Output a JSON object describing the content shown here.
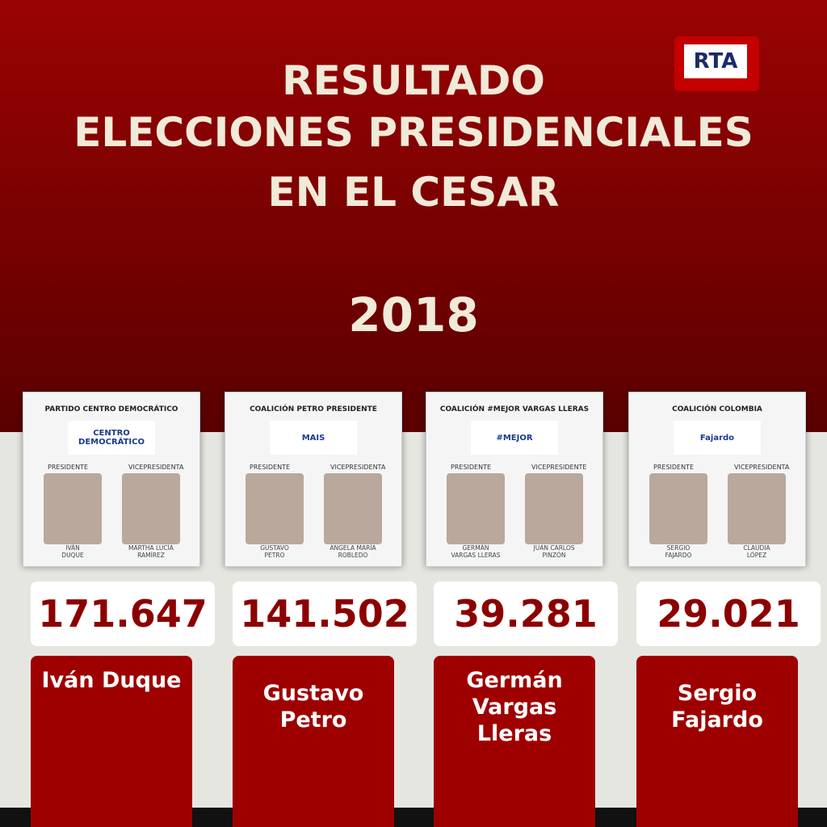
{
  "header": {
    "title_lines": [
      "RESULTADO",
      "ELECCIONES PRESIDENCIALES",
      "EN EL CESAR"
    ],
    "year": "2018",
    "logo": "RTA"
  },
  "candidates": [
    {
      "coalition": "PARTIDO CENTRO DEMOCRÁTICO",
      "party_logo": "CENTRO DEMOCRÁTICO",
      "president_label": "PRESIDENTE",
      "vp_label": "VICEPRESIDENTA",
      "president": [
        "IVÁN",
        "DUQUE"
      ],
      "vp": [
        "MARTHA LUCÍA",
        "RAMÍREZ"
      ],
      "votes": "171.647",
      "name_lines": [
        "Iván Duque"
      ]
    },
    {
      "coalition": "COALICIÓN PETRO PRESIDENTE",
      "party_logo": "MAIS",
      "president_label": "PRESIDENTE",
      "vp_label": "VICEPRESIDENTA",
      "president": [
        "GUSTAVO",
        "PETRO"
      ],
      "vp": [
        "ANGELA MARÍA",
        "ROBLEDO"
      ],
      "votes": "141.502",
      "name_lines": [
        "Gustavo",
        "Petro"
      ]
    },
    {
      "coalition": "COALICIÓN #MEJOR VARGAS LLERAS",
      "party_logo": "#MEJOR",
      "president_label": "PRESIDENTE",
      "vp_label": "VICEPRESIDENTE",
      "president": [
        "GERMÁN",
        "VARGAS LLERAS"
      ],
      "vp": [
        "JUAN CARLOS",
        "PINZÓN"
      ],
      "votes": "39.281",
      "name_lines": [
        "Germán",
        "Vargas",
        "Lleras"
      ]
    },
    {
      "coalition": "COALICIÓN COLOMBIA",
      "party_logo": "Fajardo",
      "president_label": "PRESIDENTE",
      "vp_label": "VICEPRESIDENTA",
      "president": [
        "SERGIO",
        "FAJARDO"
      ],
      "vp": [
        "CLAUDIA",
        "LÓPEZ"
      ],
      "votes": "29.021",
      "name_lines": [
        "Sergio",
        "Fajardo"
      ]
    }
  ]
}
